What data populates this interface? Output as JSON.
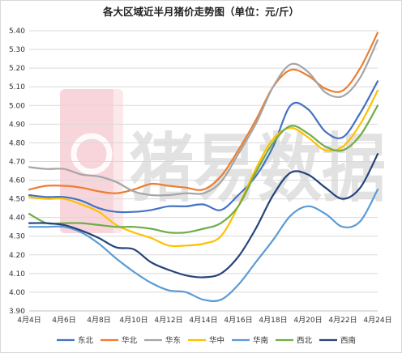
{
  "chart_data": {
    "type": "line",
    "title": "各大区域近半月猪价走势图（单位：元/斤）",
    "xlabel": "",
    "ylabel": "",
    "ylim": [
      3.9,
      5.4
    ],
    "yticks": [
      "3.90",
      "4.00",
      "4.10",
      "4.20",
      "4.30",
      "4.40",
      "4.50",
      "4.60",
      "4.70",
      "4.80",
      "4.90",
      "5.00",
      "5.10",
      "5.20",
      "5.30",
      "5.40"
    ],
    "xticks": [
      "4月4日",
      "4月6日",
      "4月8日",
      "4月10日",
      "4月12日",
      "4月14日",
      "4月16日",
      "4月18日",
      "4月20日",
      "4月22日",
      "4月24日"
    ],
    "grid": "horizontal",
    "legend_position": "bottom",
    "watermark": "猪易数据",
    "x": [
      4,
      5,
      6,
      7,
      8,
      9,
      10,
      11,
      12,
      13,
      14,
      15,
      16,
      17,
      18,
      19,
      20,
      21,
      22,
      23,
      24
    ],
    "series": [
      {
        "name": "东北",
        "color": "#4472c4",
        "values": [
          4.52,
          4.51,
          4.51,
          4.49,
          4.45,
          4.43,
          4.43,
          4.44,
          4.46,
          4.46,
          4.47,
          4.44,
          4.52,
          4.62,
          4.78,
          5.0,
          4.98,
          4.86,
          4.83,
          4.96,
          5.13
        ]
      },
      {
        "name": "华北",
        "color": "#ed7d31",
        "values": [
          4.55,
          4.57,
          4.57,
          4.56,
          4.54,
          4.53,
          4.55,
          4.58,
          4.57,
          4.56,
          4.55,
          4.62,
          4.76,
          4.92,
          5.1,
          5.19,
          5.16,
          5.09,
          5.08,
          5.2,
          5.39
        ]
      },
      {
        "name": "华东",
        "color": "#a5a5a5",
        "values": [
          4.67,
          4.66,
          4.66,
          4.63,
          4.62,
          4.59,
          4.54,
          4.52,
          4.52,
          4.53,
          4.53,
          4.59,
          4.74,
          4.9,
          5.1,
          5.22,
          5.18,
          5.07,
          5.05,
          5.15,
          5.35
        ]
      },
      {
        "name": "华中",
        "color": "#ffc000",
        "values": [
          4.51,
          4.5,
          4.5,
          4.47,
          4.43,
          4.36,
          4.32,
          4.29,
          4.25,
          4.25,
          4.26,
          4.3,
          4.46,
          4.66,
          4.82,
          4.88,
          4.83,
          4.76,
          4.78,
          4.9,
          5.08
        ]
      },
      {
        "name": "华南",
        "color": "#5b9bd5",
        "values": [
          4.35,
          4.35,
          4.35,
          4.32,
          4.26,
          4.18,
          4.11,
          4.05,
          4.01,
          4.0,
          3.96,
          3.96,
          4.04,
          4.16,
          4.28,
          4.41,
          4.46,
          4.42,
          4.35,
          4.38,
          4.55
        ]
      },
      {
        "name": "西北",
        "color": "#70ad47",
        "values": [
          4.42,
          4.37,
          4.37,
          4.37,
          4.36,
          4.35,
          4.35,
          4.34,
          4.32,
          4.32,
          4.34,
          4.37,
          4.46,
          4.64,
          4.8,
          4.89,
          4.85,
          4.78,
          4.76,
          4.84,
          5.0
        ]
      },
      {
        "name": "西南",
        "color": "#264478",
        "values": [
          4.37,
          4.37,
          4.36,
          4.33,
          4.29,
          4.24,
          4.23,
          4.16,
          4.12,
          4.09,
          4.08,
          4.1,
          4.19,
          4.34,
          4.52,
          4.64,
          4.63,
          4.56,
          4.5,
          4.56,
          4.74
        ]
      }
    ]
  }
}
